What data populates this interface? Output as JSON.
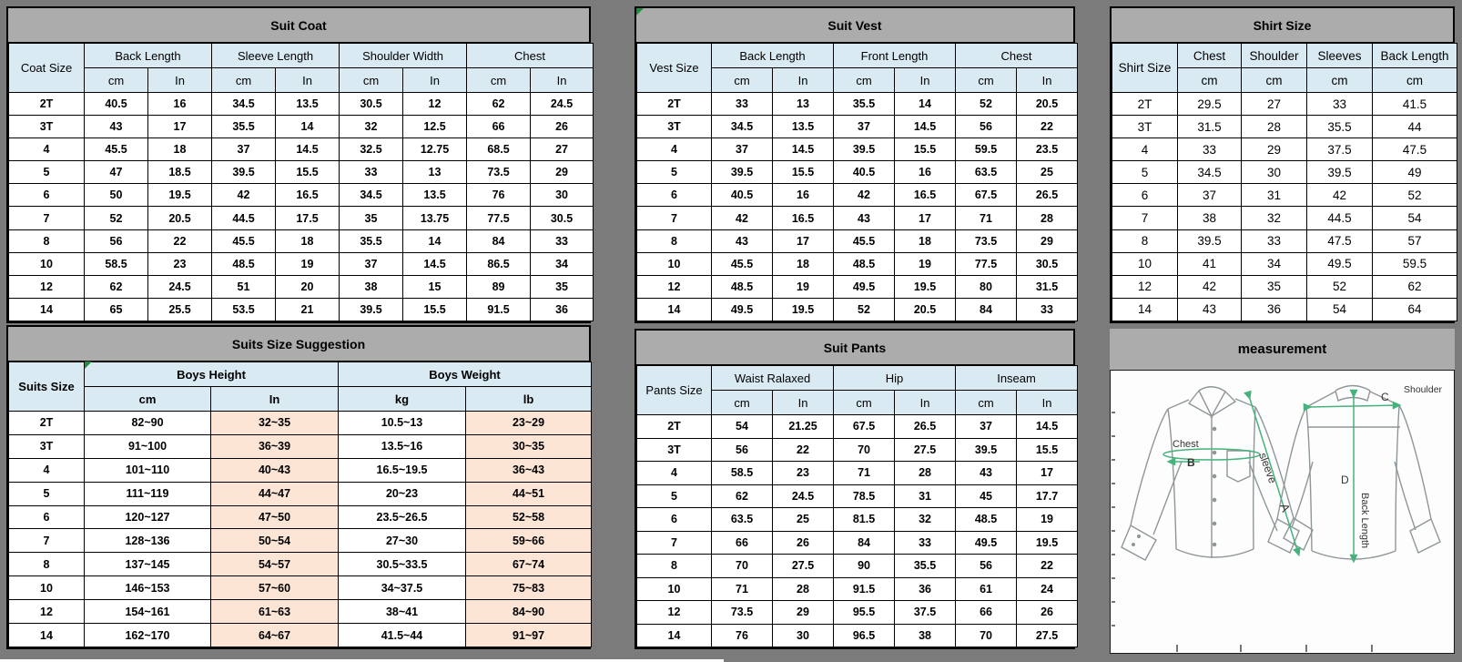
{
  "colors": {
    "background": "#7b7b7b",
    "title_bar": "#acacac",
    "header_blue": "#d9eaf3",
    "highlight_peach": "#fce5d5",
    "border": "#000000",
    "corner_green": "#1e8e3e",
    "arrow_green": "#46b27c"
  },
  "tables": [
    {
      "title": "Suit Coat",
      "size_label": "Coat Size",
      "groups": [
        {
          "label": "Back Length",
          "subs": [
            "cm",
            "In"
          ]
        },
        {
          "label": "Sleeve Length",
          "subs": [
            "cm",
            "In"
          ]
        },
        {
          "label": "Shoulder Width",
          "subs": [
            "cm",
            "In"
          ]
        },
        {
          "label": "Chest",
          "subs": [
            "cm",
            "In"
          ]
        }
      ],
      "rows": [
        {
          "size": "2T",
          "values": [
            "40.5",
            "16",
            "34.5",
            "13.5",
            "30.5",
            "12",
            "62",
            "24.5"
          ]
        },
        {
          "size": "3T",
          "values": [
            "43",
            "17",
            "35.5",
            "14",
            "32",
            "12.5",
            "66",
            "26"
          ]
        },
        {
          "size": "4",
          "values": [
            "45.5",
            "18",
            "37",
            "14.5",
            "32.5",
            "12.75",
            "68.5",
            "27"
          ]
        },
        {
          "size": "5",
          "values": [
            "47",
            "18.5",
            "39.5",
            "15.5",
            "33",
            "13",
            "73.5",
            "29"
          ]
        },
        {
          "size": "6",
          "values": [
            "50",
            "19.5",
            "42",
            "16.5",
            "34.5",
            "13.5",
            "76",
            "30"
          ]
        },
        {
          "size": "7",
          "values": [
            "52",
            "20.5",
            "44.5",
            "17.5",
            "35",
            "13.75",
            "77.5",
            "30.5"
          ]
        },
        {
          "size": "8",
          "values": [
            "56",
            "22",
            "45.5",
            "18",
            "35.5",
            "14",
            "84",
            "33"
          ]
        },
        {
          "size": "10",
          "values": [
            "58.5",
            "23",
            "48.5",
            "19",
            "37",
            "14.5",
            "86.5",
            "34"
          ]
        },
        {
          "size": "12",
          "values": [
            "62",
            "24.5",
            "51",
            "20",
            "38",
            "15",
            "89",
            "35"
          ]
        },
        {
          "size": "14",
          "values": [
            "65",
            "25.5",
            "53.5",
            "21",
            "39.5",
            "15.5",
            "91.5",
            "36"
          ]
        }
      ]
    },
    {
      "title": "Suit Vest",
      "size_label": "Vest Size",
      "groups": [
        {
          "label": "Back Length",
          "subs": [
            "cm",
            "In"
          ]
        },
        {
          "label": "Front Length",
          "subs": [
            "cm",
            "In"
          ]
        },
        {
          "label": "Chest",
          "subs": [
            "cm",
            "In"
          ]
        }
      ],
      "rows": [
        {
          "size": "2T",
          "values": [
            "33",
            "13",
            "35.5",
            "14",
            "52",
            "20.5"
          ]
        },
        {
          "size": "3T",
          "values": [
            "34.5",
            "13.5",
            "37",
            "14.5",
            "56",
            "22"
          ]
        },
        {
          "size": "4",
          "values": [
            "37",
            "14.5",
            "39.5",
            "15.5",
            "59.5",
            "23.5"
          ]
        },
        {
          "size": "5",
          "values": [
            "39.5",
            "15.5",
            "40.5",
            "16",
            "63.5",
            "25"
          ]
        },
        {
          "size": "6",
          "values": [
            "40.5",
            "16",
            "42",
            "16.5",
            "67.5",
            "26.5"
          ]
        },
        {
          "size": "7",
          "values": [
            "42",
            "16.5",
            "43",
            "17",
            "71",
            "28"
          ]
        },
        {
          "size": "8",
          "values": [
            "43",
            "17",
            "45.5",
            "18",
            "73.5",
            "29"
          ]
        },
        {
          "size": "10",
          "values": [
            "45.5",
            "18",
            "48.5",
            "19",
            "77.5",
            "30.5"
          ]
        },
        {
          "size": "12",
          "values": [
            "48.5",
            "19",
            "49.5",
            "19.5",
            "80",
            "31.5"
          ]
        },
        {
          "size": "14",
          "values": [
            "49.5",
            "19.5",
            "52",
            "20.5",
            "84",
            "33"
          ]
        }
      ]
    },
    {
      "title": "Shirt Size",
      "size_label": "Shirt Size",
      "groups": [
        {
          "label": "Chest",
          "subs": [
            "cm"
          ]
        },
        {
          "label": "Shoulder",
          "subs": [
            "cm"
          ]
        },
        {
          "label": "Sleeves",
          "subs": [
            "cm"
          ]
        },
        {
          "label": "Back Length",
          "subs": [
            "cm"
          ]
        }
      ],
      "rows": [
        {
          "size": "2T",
          "values": [
            "29.5",
            "27",
            "33",
            "41.5"
          ]
        },
        {
          "size": "3T",
          "values": [
            "31.5",
            "28",
            "35.5",
            "44"
          ]
        },
        {
          "size": "4",
          "values": [
            "33",
            "29",
            "37.5",
            "47.5"
          ]
        },
        {
          "size": "5",
          "values": [
            "34.5",
            "30",
            "39.5",
            "49"
          ]
        },
        {
          "size": "6",
          "values": [
            "37",
            "31",
            "42",
            "52"
          ]
        },
        {
          "size": "7",
          "values": [
            "38",
            "32",
            "44.5",
            "54"
          ]
        },
        {
          "size": "8",
          "values": [
            "39.5",
            "33",
            "47.5",
            "57"
          ]
        },
        {
          "size": "10",
          "values": [
            "41",
            "34",
            "49.5",
            "59.5"
          ]
        },
        {
          "size": "12",
          "values": [
            "42",
            "35",
            "52",
            "62"
          ]
        },
        {
          "size": "14",
          "values": [
            "43",
            "36",
            "54",
            "64"
          ]
        }
      ]
    },
    {
      "title": "Suits Size Suggestion",
      "size_label": "Suits Size",
      "groups": [
        {
          "label": "Boys Height",
          "subs": [
            "cm",
            "In"
          ]
        },
        {
          "label": "Boys Weight",
          "subs": [
            "kg",
            "lb"
          ]
        }
      ],
      "rows": [
        {
          "size": "2T",
          "values": [
            "82~90",
            "32~35",
            "10.5~13",
            "23~29"
          ]
        },
        {
          "size": "3T",
          "values": [
            "91~100",
            "36~39",
            "13.5~16",
            "30~35"
          ]
        },
        {
          "size": "4",
          "values": [
            "101~110",
            "40~43",
            "16.5~19.5",
            "36~43"
          ]
        },
        {
          "size": "5",
          "values": [
            "111~119",
            "44~47",
            "20~23",
            "44~51"
          ]
        },
        {
          "size": "6",
          "values": [
            "120~127",
            "47~50",
            "23.5~26.5",
            "52~58"
          ]
        },
        {
          "size": "7",
          "values": [
            "128~136",
            "50~54",
            "27~30",
            "59~66"
          ]
        },
        {
          "size": "8",
          "values": [
            "137~145",
            "54~57",
            "30.5~33.5",
            "67~74"
          ]
        },
        {
          "size": "10",
          "values": [
            "146~153",
            "57~60",
            "34~37.5",
            "75~83"
          ]
        },
        {
          "size": "12",
          "values": [
            "154~161",
            "61~63",
            "38~41",
            "84~90"
          ]
        },
        {
          "size": "14",
          "values": [
            "162~170",
            "64~67",
            "41.5~44",
            "91~97"
          ]
        }
      ]
    },
    {
      "title": "Suit Pants",
      "size_label": "Pants Size",
      "groups": [
        {
          "label": "Waist Ralaxed",
          "subs": [
            "cm",
            "In"
          ]
        },
        {
          "label": "Hip",
          "subs": [
            "cm",
            "In"
          ]
        },
        {
          "label": "Inseam",
          "subs": [
            "cm",
            "In"
          ]
        }
      ],
      "rows": [
        {
          "size": "2T",
          "values": [
            "54",
            "21.25",
            "67.5",
            "26.5",
            "37",
            "14.5"
          ]
        },
        {
          "size": "3T",
          "values": [
            "56",
            "22",
            "70",
            "27.5",
            "39.5",
            "15.5"
          ]
        },
        {
          "size": "4",
          "values": [
            "58.5",
            "23",
            "71",
            "28",
            "43",
            "17"
          ]
        },
        {
          "size": "5",
          "values": [
            "62",
            "24.5",
            "78.5",
            "31",
            "45",
            "17.7"
          ]
        },
        {
          "size": "6",
          "values": [
            "63.5",
            "25",
            "81.5",
            "32",
            "48.5",
            "19"
          ]
        },
        {
          "size": "7",
          "values": [
            "66",
            "26",
            "84",
            "33",
            "49.5",
            "19.5"
          ]
        },
        {
          "size": "8",
          "values": [
            "70",
            "27.5",
            "90",
            "35.5",
            "56",
            "22"
          ]
        },
        {
          "size": "10",
          "values": [
            "71",
            "28",
            "91.5",
            "36",
            "61",
            "24"
          ]
        },
        {
          "size": "12",
          "values": [
            "73.5",
            "29",
            "95.5",
            "37.5",
            "66",
            "26"
          ]
        },
        {
          "size": "14",
          "values": [
            "76",
            "30",
            "96.5",
            "38",
            "70",
            "27.5"
          ]
        }
      ]
    }
  ],
  "measurement": {
    "title": "measurement",
    "labels": {
      "chest": "Chest",
      "b": "B",
      "sleeve": "sleeve",
      "a": "A",
      "c": "C",
      "shoulder": "Shoulder",
      "d": "D",
      "back_length": "Back Length"
    }
  }
}
